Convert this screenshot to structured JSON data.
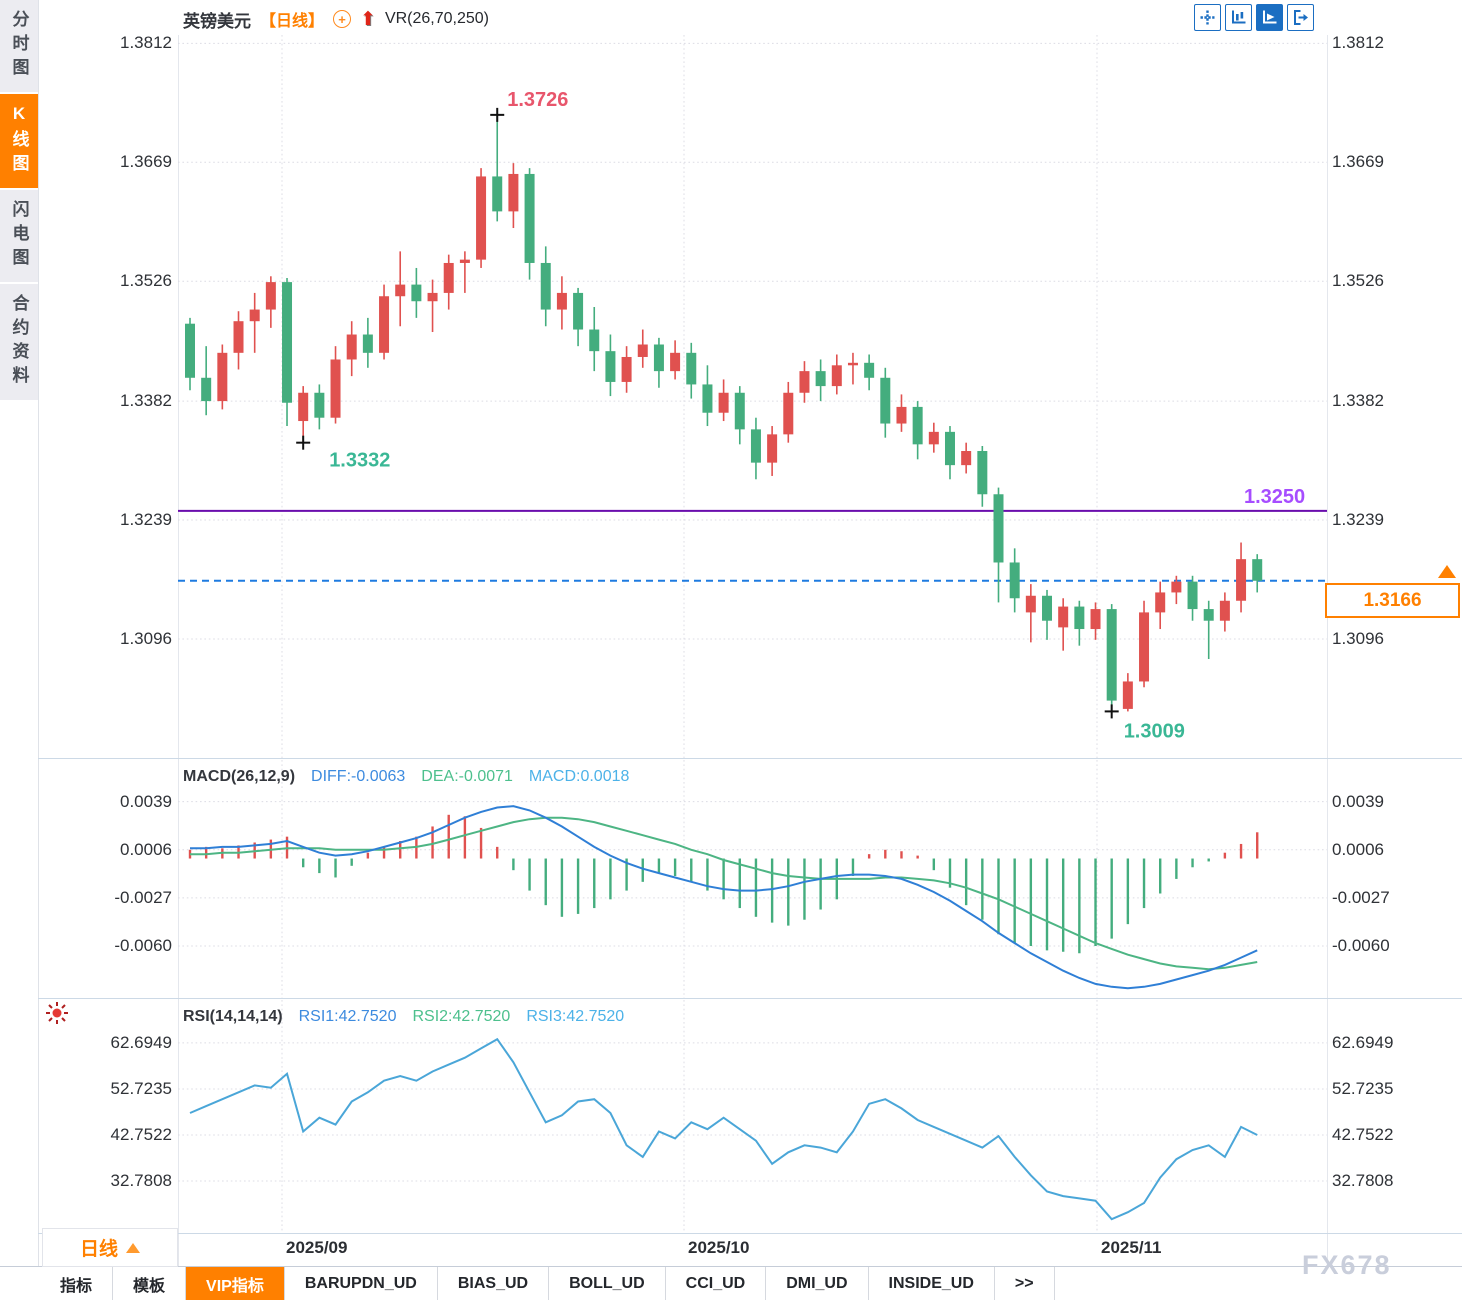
{
  "window": {
    "app": "FX678 行情图表",
    "title": "英镑美元"
  },
  "sidebar": {
    "tabs": [
      {
        "label": "分时图",
        "active": false
      },
      {
        "label": "K线图",
        "active": true
      },
      {
        "label": "闪电图",
        "active": false
      },
      {
        "label": "合约资料",
        "active": false
      }
    ]
  },
  "header": {
    "symbol": "英镑美元",
    "period_tag": "【日线】",
    "add_icon": "circled-plus-icon",
    "trend_icon": "red-up-arrow-icon",
    "indicator": "VR(26,70,250)"
  },
  "toolbar": {
    "buttons": [
      {
        "name": "pan-crosshair",
        "active": false
      },
      {
        "name": "axis-scale",
        "active": false
      },
      {
        "name": "axis-auto",
        "active": true
      },
      {
        "name": "collapse-right",
        "active": false
      }
    ]
  },
  "legends": {
    "macd": {
      "title": "MACD(26,12,9)",
      "diff_label": "DIFF:-0.0063",
      "dea_label": "DEA:-0.0071",
      "macd_label": "MACD:0.0018"
    },
    "rsi": {
      "title": "RSI(14,14,14)",
      "rsi1_label": "RSI1:42.7520",
      "rsi2_label": "RSI2:42.7520",
      "rsi3_label": "RSI3:42.7520"
    }
  },
  "period_button": {
    "label": "日线",
    "arrow": "up-triangle"
  },
  "bottom_tabs": {
    "items": [
      {
        "label": "指标",
        "active": false
      },
      {
        "label": "模板",
        "active": false
      },
      {
        "label": "VIP指标",
        "active": true
      },
      {
        "label": "BARUPDN_UD",
        "active": false
      },
      {
        "label": "BIAS_UD",
        "active": false
      },
      {
        "label": "BOLL_UD",
        "active": false
      },
      {
        "label": "CCI_UD",
        "active": false
      },
      {
        "label": "DMI_UD",
        "active": false
      },
      {
        "label": "INSIDE_UD",
        "active": false
      },
      {
        "label": ">>",
        "active": false
      }
    ]
  },
  "watermark": "FX678",
  "colors": {
    "up_candle": "#e0514f",
    "down_candle": "#44ad7e",
    "accent_orange": "#ff8000",
    "support_line": "#6a0dad",
    "support_label": "#a64dff",
    "current_line": "#1e7be0",
    "diff_line": "#2f7fd6",
    "dea_line": "#4db584",
    "rsi_line": "#4aa6d8",
    "high_label": "#e8566c",
    "low_label": "#3ab795",
    "marker": "#111111"
  },
  "chart_data": {
    "type": "candlestick",
    "title": "英镑美元 日线 (GBP/USD Daily)",
    "x_axis": {
      "labels": [
        "2025/09",
        "2025/10",
        "2025/11"
      ],
      "gridline_x": [
        104,
        506,
        919
      ]
    },
    "price_panel": {
      "ylim_top": 1.3822,
      "ylim_bottom": 1.2953,
      "yticks": [
        1.3812,
        1.3669,
        1.3526,
        1.3382,
        1.3239,
        1.3096
      ],
      "high_annotation": {
        "index": 19,
        "value": 1.3726,
        "label": "1.3726"
      },
      "low1_annotation": {
        "index": 7,
        "value": 1.3332,
        "label": "1.3332"
      },
      "low2_annotation": {
        "index": 57,
        "value": 1.3009,
        "label": "1.3009"
      },
      "support_line": {
        "value": 1.325,
        "label": "1.3250"
      },
      "current_price": {
        "value": 1.3166,
        "label": "1.3166"
      },
      "candles": {
        "open": [
          1.3475,
          1.341,
          1.3382,
          1.344,
          1.3478,
          1.3492,
          1.3525,
          1.3358,
          1.3392,
          1.3362,
          1.3432,
          1.3462,
          1.344,
          1.3508,
          1.3522,
          1.3502,
          1.3512,
          1.3548,
          1.3552,
          1.3652,
          1.361,
          1.3655,
          1.3548,
          1.3492,
          1.3512,
          1.3468,
          1.3442,
          1.3405,
          1.3435,
          1.345,
          1.3418,
          1.344,
          1.3402,
          1.3368,
          1.3392,
          1.3348,
          1.3308,
          1.3342,
          1.3392,
          1.3418,
          1.34,
          1.3425,
          1.3428,
          1.341,
          1.3355,
          1.3375,
          1.333,
          1.3345,
          1.3305,
          1.3322,
          1.327,
          1.3188,
          1.3128,
          1.3148,
          1.311,
          1.3135,
          1.3108,
          1.3132,
          1.3012,
          1.3045,
          1.3128,
          1.3152,
          1.3165,
          1.3132,
          1.3118,
          1.3142,
          1.3192
        ],
        "high": [
          1.3482,
          1.3448,
          1.345,
          1.349,
          1.3512,
          1.3532,
          1.353,
          1.34,
          1.3402,
          1.3448,
          1.3478,
          1.3482,
          1.3522,
          1.3562,
          1.3542,
          1.3528,
          1.3558,
          1.3562,
          1.3662,
          1.3726,
          1.3668,
          1.3662,
          1.3568,
          1.3532,
          1.3518,
          1.3495,
          1.3462,
          1.3448,
          1.3468,
          1.3458,
          1.3455,
          1.3452,
          1.3425,
          1.3408,
          1.34,
          1.3362,
          1.3352,
          1.3405,
          1.343,
          1.3432,
          1.3438,
          1.344,
          1.3438,
          1.3422,
          1.339,
          1.3382,
          1.3356,
          1.3352,
          1.3332,
          1.3328,
          1.3278,
          1.3205,
          1.3162,
          1.3155,
          1.3145,
          1.3142,
          1.314,
          1.3138,
          1.3055,
          1.3142,
          1.3165,
          1.3172,
          1.3172,
          1.3142,
          1.3152,
          1.3212,
          1.3198
        ],
        "low": [
          1.3395,
          1.3365,
          1.3372,
          1.342,
          1.344,
          1.347,
          1.3352,
          1.3332,
          1.3348,
          1.3355,
          1.3412,
          1.3422,
          1.3432,
          1.3472,
          1.3482,
          1.3465,
          1.3492,
          1.3512,
          1.3542,
          1.3598,
          1.359,
          1.3528,
          1.3472,
          1.3468,
          1.3448,
          1.3418,
          1.3388,
          1.3392,
          1.3422,
          1.3398,
          1.3408,
          1.3385,
          1.3352,
          1.3358,
          1.333,
          1.3288,
          1.3292,
          1.3332,
          1.338,
          1.3382,
          1.339,
          1.3402,
          1.3395,
          1.3338,
          1.3345,
          1.3312,
          1.332,
          1.3288,
          1.3295,
          1.3255,
          1.314,
          1.3128,
          1.3092,
          1.3095,
          1.3082,
          1.3088,
          1.3095,
          1.3009,
          1.3009,
          1.3038,
          1.3108,
          1.3138,
          1.3118,
          1.3072,
          1.3105,
          1.3128,
          1.3152
        ],
        "close": [
          1.341,
          1.3382,
          1.344,
          1.3478,
          1.3492,
          1.3525,
          1.338,
          1.3392,
          1.3362,
          1.3432,
          1.3462,
          1.344,
          1.3508,
          1.3522,
          1.3502,
          1.3512,
          1.3548,
          1.3552,
          1.3652,
          1.361,
          1.3655,
          1.3548,
          1.3492,
          1.3512,
          1.3468,
          1.3442,
          1.3405,
          1.3435,
          1.345,
          1.3418,
          1.344,
          1.3402,
          1.3368,
          1.3392,
          1.3348,
          1.3308,
          1.3342,
          1.3392,
          1.3418,
          1.34,
          1.3425,
          1.3428,
          1.341,
          1.3355,
          1.3375,
          1.333,
          1.3345,
          1.3305,
          1.3322,
          1.327,
          1.3188,
          1.3145,
          1.3148,
          1.3118,
          1.3135,
          1.3108,
          1.3132,
          1.3022,
          1.3045,
          1.3128,
          1.3152,
          1.3165,
          1.3132,
          1.3118,
          1.3142,
          1.3192,
          1.3166
        ]
      }
    },
    "macd_panel": {
      "ylim_top": 0.00676,
      "ylim_bottom": -0.00957,
      "yticks": [
        0.0039,
        0.0006,
        -0.0027,
        -0.006
      ],
      "diff": [
        0.0007,
        0.0007,
        0.0008,
        0.0008,
        0.0009,
        0.001,
        0.0012,
        0.0008,
        0.0004,
        0.0002,
        0.0003,
        0.0005,
        0.0008,
        0.0011,
        0.0014,
        0.0018,
        0.0023,
        0.0028,
        0.0032,
        0.0035,
        0.0036,
        0.0033,
        0.0028,
        0.0022,
        0.0015,
        0.0008,
        0.0002,
        -0.0003,
        -0.0007,
        -0.001,
        -0.0013,
        -0.0016,
        -0.0019,
        -0.0021,
        -0.0022,
        -0.0022,
        -0.0021,
        -0.0019,
        -0.0016,
        -0.0014,
        -0.0012,
        -0.0011,
        -0.0011,
        -0.0012,
        -0.0014,
        -0.0018,
        -0.0023,
        -0.0029,
        -0.0036,
        -0.0043,
        -0.0051,
        -0.0058,
        -0.0065,
        -0.0071,
        -0.0077,
        -0.0082,
        -0.0086,
        -0.0088,
        -0.0089,
        -0.0088,
        -0.0086,
        -0.0083,
        -0.008,
        -0.0077,
        -0.0073,
        -0.0068,
        -0.0063
      ],
      "dea": [
        0.0003,
        0.0003,
        0.0004,
        0.0004,
        0.0005,
        0.0006,
        0.0007,
        0.0007,
        0.0007,
        0.0006,
        0.0006,
        0.0006,
        0.0006,
        0.0007,
        0.0008,
        0.001,
        0.0013,
        0.0016,
        0.0019,
        0.0022,
        0.0025,
        0.0027,
        0.0028,
        0.0028,
        0.0027,
        0.0025,
        0.0022,
        0.0019,
        0.0016,
        0.0013,
        0.001,
        0.0006,
        0.0003,
        -0.0001,
        -0.0004,
        -0.0007,
        -0.001,
        -0.0012,
        -0.0013,
        -0.0014,
        -0.0014,
        -0.0014,
        -0.0014,
        -0.0013,
        -0.0013,
        -0.0014,
        -0.0015,
        -0.0017,
        -0.002,
        -0.0024,
        -0.0028,
        -0.0033,
        -0.0038,
        -0.0043,
        -0.0048,
        -0.0053,
        -0.0058,
        -0.0062,
        -0.0066,
        -0.0069,
        -0.0072,
        -0.0074,
        -0.0075,
        -0.0076,
        -0.0075,
        -0.0073,
        -0.0071
      ],
      "hist": [
        0.0006,
        0.0008,
        0.0007,
        0.0009,
        0.0011,
        0.0013,
        0.0015,
        -0.0006,
        -0.001,
        -0.0013,
        -0.0005,
        0.0004,
        0.0008,
        0.0012,
        0.0015,
        0.0022,
        0.003,
        0.0029,
        0.0021,
        0.0008,
        -0.0008,
        -0.0022,
        -0.0032,
        -0.004,
        -0.0038,
        -0.0034,
        -0.0028,
        -0.0022,
        -0.0016,
        -0.001,
        -0.0012,
        -0.0016,
        -0.0022,
        -0.0028,
        -0.0034,
        -0.004,
        -0.0044,
        -0.0046,
        -0.0042,
        -0.0035,
        -0.0028,
        -0.0012,
        0.0003,
        0.0006,
        0.0005,
        0.0002,
        -0.0008,
        -0.002,
        -0.0032,
        -0.0042,
        -0.0052,
        -0.0058,
        -0.006,
        -0.0063,
        -0.0064,
        -0.0065,
        -0.006,
        -0.0055,
        -0.0045,
        -0.0034,
        -0.0024,
        -0.0014,
        -0.0006,
        -0.0002,
        0.0004,
        0.001,
        0.0018
      ]
    },
    "rsi_panel": {
      "ylim_top": 72.0,
      "ylim_bottom": 21.5,
      "yticks": [
        62.6949,
        52.7235,
        42.7522,
        32.7808
      ],
      "rsi": [
        47.5,
        49.0,
        50.5,
        52.0,
        53.5,
        53.0,
        56.0,
        43.5,
        46.5,
        45.0,
        50.0,
        52.0,
        54.5,
        55.5,
        54.5,
        56.5,
        58.0,
        59.5,
        61.5,
        63.5,
        58.5,
        52.0,
        45.5,
        47.0,
        50.0,
        50.5,
        47.5,
        40.5,
        38.0,
        43.5,
        42.0,
        45.5,
        44.0,
        46.5,
        44.0,
        41.5,
        36.5,
        39.0,
        40.5,
        40.0,
        39.0,
        43.5,
        49.5,
        50.5,
        48.5,
        46.0,
        44.5,
        43.0,
        41.5,
        40.0,
        42.5,
        38.0,
        34.0,
        30.5,
        29.5,
        29.0,
        28.5,
        24.5,
        26.0,
        28.0,
        33.5,
        37.5,
        39.5,
        40.5,
        38.0,
        44.5,
        42.75
      ]
    }
  }
}
